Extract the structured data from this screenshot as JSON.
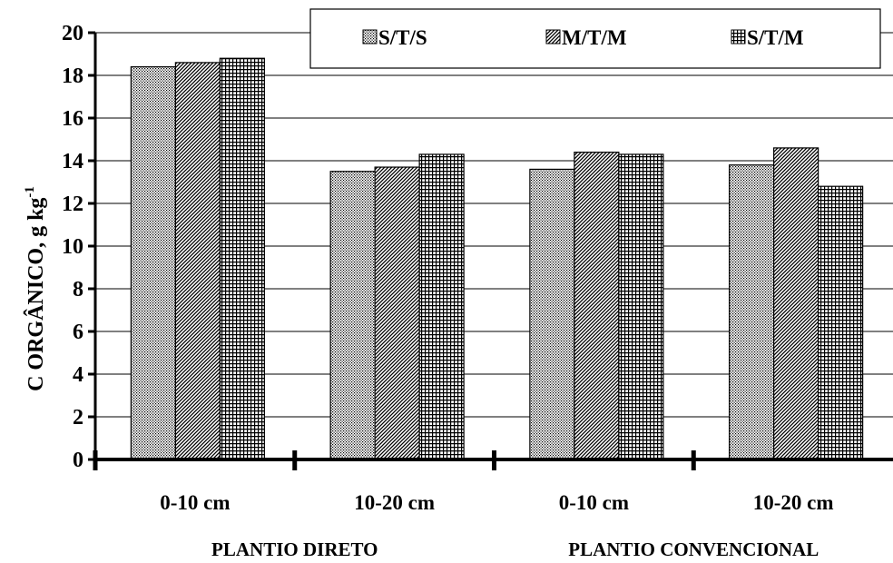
{
  "chart_data": {
    "type": "bar",
    "title": "",
    "xlabel": "",
    "ylabel": "C  ORGÂNICO, g kg",
    "ylabel_superscript": "-1",
    "ylim": [
      0,
      20
    ],
    "yticks": [
      0,
      2,
      4,
      6,
      8,
      10,
      12,
      14,
      16,
      18,
      20
    ],
    "grid": true,
    "legend_position": "top-right",
    "categories": [
      "0-10 cm",
      "10-20 cm",
      "0-10 cm",
      "10-20 cm"
    ],
    "groups": [
      {
        "label": "PLANTIO DIRETO",
        "categories": [
          "0-10 cm",
          "10-20 cm"
        ]
      },
      {
        "label": "PLANTIO CONVENCIONAL",
        "categories": [
          "0-10 cm",
          "10-20 cm"
        ]
      }
    ],
    "series": [
      {
        "name": "S/T/S",
        "pattern": "dots",
        "values": [
          18.4,
          13.5,
          13.6,
          13.8
        ]
      },
      {
        "name": "M/T/M",
        "pattern": "diagonal",
        "values": [
          18.6,
          13.7,
          14.4,
          14.6
        ]
      },
      {
        "name": "S/T/M",
        "pattern": "grid",
        "values": [
          18.8,
          14.3,
          14.3,
          12.8
        ]
      }
    ]
  }
}
